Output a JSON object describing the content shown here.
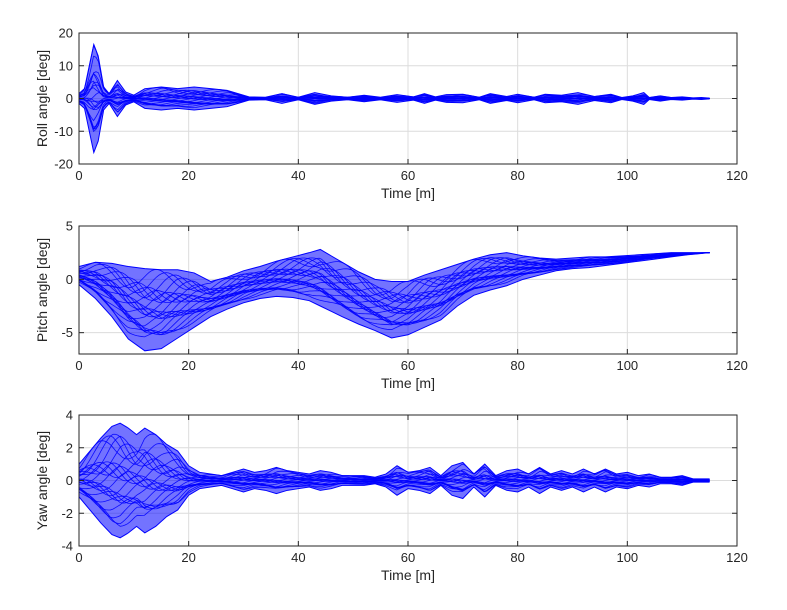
{
  "chart_data": [
    {
      "type": "line",
      "series_description": "ensemble of overlapping trajectories",
      "color": "#0000ff",
      "xlabel": "Time [m]",
      "ylabel": "Roll angle [deg]",
      "xlim": [
        0,
        120
      ],
      "ylim": [
        -20,
        20
      ],
      "xticks": [
        0,
        20,
        40,
        60,
        80,
        100,
        120
      ],
      "yticks": [
        -20,
        -10,
        0,
        10,
        20
      ],
      "grid": true,
      "envelope": {
        "x": [
          0,
          1,
          2,
          2.7,
          3.5,
          4.5,
          5.5,
          7,
          8.5,
          10,
          12,
          15,
          18,
          21,
          24,
          27,
          29,
          31,
          34,
          37,
          40,
          43,
          46,
          49,
          52,
          55,
          58,
          61,
          63,
          65,
          67,
          70,
          73,
          75,
          78,
          80,
          83,
          85,
          88,
          91,
          94,
          97,
          99,
          101,
          103,
          104,
          106,
          108,
          110,
          112,
          113.5,
          115
        ],
        "upper": [
          1.5,
          3,
          11,
          16.5,
          13,
          3.5,
          1.5,
          5.5,
          2,
          1,
          3,
          3.5,
          3,
          3.5,
          3,
          2.5,
          1.5,
          0.5,
          0.4,
          1.5,
          0.4,
          1.8,
          0.8,
          0.4,
          1,
          0.4,
          1.2,
          0.5,
          1.5,
          0.5,
          1.2,
          1.3,
          0.4,
          1.5,
          0.6,
          1.3,
          0.4,
          1.3,
          1,
          1.8,
          0.6,
          1.3,
          0.3,
          0.8,
          1.8,
          0.3,
          0.8,
          0.3,
          0.5,
          0.2,
          0.3,
          0.1
        ],
        "lower": [
          -1.5,
          -3,
          -11,
          -16.5,
          -13,
          -3.5,
          -1.5,
          -5.5,
          -2,
          -1,
          -3,
          -3.5,
          -3,
          -3.5,
          -3,
          -2.5,
          -1.5,
          -0.5,
          -0.4,
          -1.5,
          -0.4,
          -1.8,
          -0.8,
          -0.4,
          -1,
          -0.4,
          -1.2,
          -0.5,
          -1.5,
          -0.5,
          -1.2,
          -1.3,
          -0.4,
          -1.5,
          -0.6,
          -1.3,
          -0.4,
          -1.3,
          -1,
          -1.8,
          -0.6,
          -1.3,
          -0.3,
          -0.8,
          -1.8,
          -0.3,
          -0.8,
          -0.3,
          -0.5,
          -0.2,
          -0.3,
          -0.1
        ]
      }
    },
    {
      "type": "line",
      "series_description": "ensemble of overlapping trajectories",
      "color": "#0000ff",
      "xlabel": "Time [m]",
      "ylabel": "Pitch angle [deg]",
      "xlim": [
        0,
        120
      ],
      "ylim": [
        -7,
        5
      ],
      "xticks": [
        0,
        20,
        40,
        60,
        80,
        100,
        120
      ],
      "yticks": [
        -5,
        0,
        5
      ],
      "grid": true,
      "envelope": {
        "x": [
          0,
          3,
          6,
          9,
          12,
          15,
          18,
          21,
          24,
          27,
          30,
          33,
          36,
          39,
          42,
          44,
          46,
          48,
          51,
          54,
          57,
          60,
          63,
          66,
          69,
          72,
          75,
          78,
          81,
          84,
          87,
          90,
          93,
          96,
          99,
          102,
          105,
          108,
          111,
          113,
          115
        ],
        "upper": [
          1.2,
          1.6,
          1.5,
          1.2,
          1.0,
          0.9,
          0.9,
          0.6,
          -0.2,
          0.2,
          0.8,
          1.2,
          1.7,
          2.1,
          2.5,
          2.8,
          2.2,
          1.6,
          0.7,
          0.0,
          -0.2,
          -0.2,
          0.4,
          0.9,
          1.4,
          1.9,
          2.3,
          2.5,
          2.2,
          2.0,
          1.9,
          2.0,
          2.1,
          2.1,
          2.2,
          2.3,
          2.4,
          2.5,
          2.5,
          2.5,
          2.5
        ],
        "lower": [
          -0.5,
          -1.8,
          -3.5,
          -5.6,
          -6.7,
          -6.5,
          -5.5,
          -4.5,
          -3.5,
          -2.8,
          -2.2,
          -1.8,
          -1.6,
          -1.7,
          -2.0,
          -2.5,
          -3.0,
          -3.5,
          -4.2,
          -4.8,
          -5.5,
          -5.2,
          -4.5,
          -3.8,
          -2.5,
          -1.5,
          -1.0,
          -0.6,
          0.0,
          0.4,
          0.8,
          1.0,
          1.1,
          1.3,
          1.5,
          1.7,
          1.9,
          2.1,
          2.3,
          2.4,
          2.5
        ]
      }
    },
    {
      "type": "line",
      "series_description": "ensemble of overlapping trajectories",
      "color": "#0000ff",
      "xlabel": "Time [m]",
      "ylabel": "Yaw angle [deg]",
      "xlim": [
        0,
        120
      ],
      "ylim": [
        -4,
        4
      ],
      "xticks": [
        0,
        20,
        40,
        60,
        80,
        100,
        120
      ],
      "yticks": [
        -4,
        -2,
        0,
        2,
        4
      ],
      "grid": true,
      "envelope": {
        "x": [
          0,
          2,
          4,
          6,
          7.5,
          9,
          10.5,
          12,
          14,
          16,
          18,
          20,
          22,
          24,
          26,
          28,
          30,
          32,
          34,
          36,
          38,
          40,
          42,
          44,
          46,
          48,
          50,
          52,
          54,
          56,
          58,
          60,
          62,
          64,
          66,
          68,
          70,
          72,
          74,
          76,
          78,
          80,
          82,
          84,
          86,
          88,
          90,
          92,
          94,
          96,
          98,
          100,
          102,
          104,
          106,
          108,
          110,
          112,
          115
        ],
        "upper": [
          1.0,
          1.8,
          2.6,
          3.3,
          3.5,
          3.2,
          2.8,
          3.2,
          2.8,
          2.2,
          1.8,
          0.9,
          0.5,
          0.4,
          0.3,
          0.5,
          0.7,
          0.5,
          0.6,
          0.8,
          0.6,
          0.5,
          0.4,
          0.6,
          0.5,
          0.3,
          0.3,
          0.3,
          0.2,
          0.4,
          0.9,
          0.5,
          0.6,
          0.8,
          0.3,
          0.9,
          1.1,
          0.4,
          1.0,
          0.3,
          0.6,
          0.7,
          0.4,
          0.8,
          0.4,
          0.6,
          0.4,
          0.7,
          0.4,
          0.7,
          0.4,
          0.5,
          0.3,
          0.4,
          0.2,
          0.2,
          0.3,
          0.1,
          0.1
        ],
        "lower": [
          -1.0,
          -1.8,
          -2.6,
          -3.3,
          -3.5,
          -3.2,
          -2.8,
          -3.2,
          -2.8,
          -2.2,
          -1.8,
          -0.9,
          -0.5,
          -0.4,
          -0.3,
          -0.5,
          -0.7,
          -0.5,
          -0.6,
          -0.8,
          -0.6,
          -0.5,
          -0.4,
          -0.6,
          -0.5,
          -0.3,
          -0.3,
          -0.3,
          -0.2,
          -0.4,
          -0.9,
          -0.5,
          -0.6,
          -0.8,
          -0.3,
          -0.9,
          -1.1,
          -0.4,
          -1.0,
          -0.3,
          -0.6,
          -0.7,
          -0.4,
          -0.8,
          -0.4,
          -0.6,
          -0.4,
          -0.7,
          -0.4,
          -0.7,
          -0.4,
          -0.5,
          -0.3,
          -0.4,
          -0.2,
          -0.2,
          -0.3,
          -0.1,
          -0.1
        ]
      }
    }
  ]
}
